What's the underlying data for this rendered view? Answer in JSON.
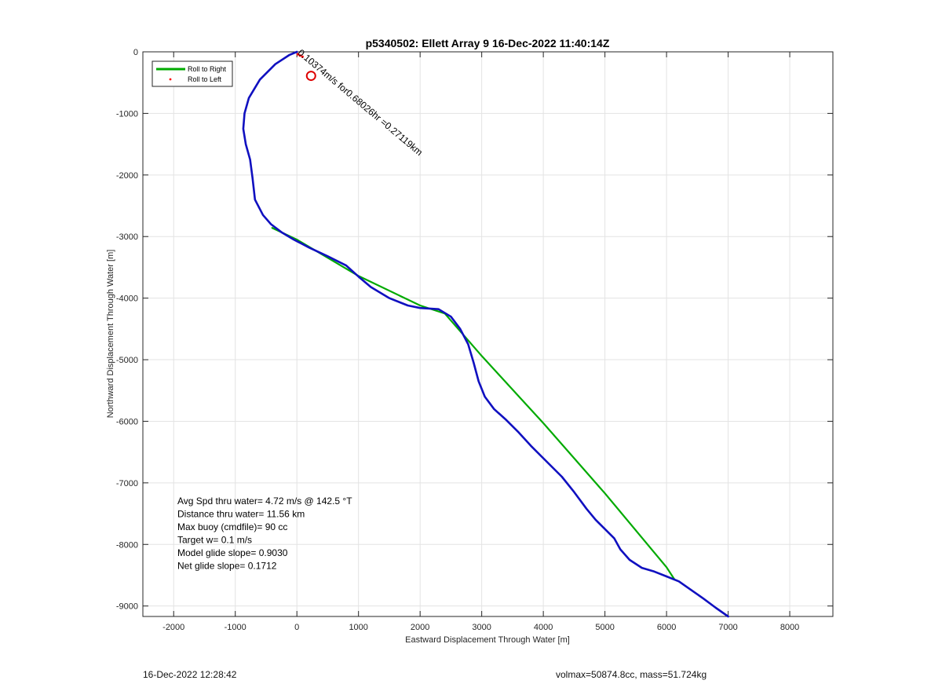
{
  "chart_data": {
    "type": "line",
    "title": "p5340502: Ellett Array 9 16-Dec-2022 11:40:14Z",
    "xlabel": "Eastward Displacement Through Water [m]",
    "ylabel": "Northward Displacement Through Water [m]",
    "xlim": [
      -2500,
      8700
    ],
    "ylim": [
      -9170,
      0
    ],
    "xticks": [
      -2000,
      -1000,
      0,
      1000,
      2000,
      3000,
      4000,
      5000,
      6000,
      7000,
      8000
    ],
    "yticks": [
      0,
      -1000,
      -2000,
      -3000,
      -4000,
      -5000,
      -6000,
      -7000,
      -8000,
      -9000
    ],
    "grid": true,
    "legend_position": "top-left",
    "series": [
      {
        "name": "Roll to Right",
        "style": "solid-line",
        "color": "#00aa00",
        "x": [
          -400,
          0,
          1000,
          2000,
          2400,
          3000,
          4000,
          5000,
          6000,
          6130
        ],
        "y": [
          -2860,
          -3050,
          -3640,
          -4120,
          -4250,
          -4940,
          -6030,
          -7170,
          -8370,
          -8570
        ]
      },
      {
        "name": "Roll to Left",
        "style": "dots",
        "color": "#ff0000",
        "x": [
          15,
          50,
          90
        ],
        "y": [
          -40,
          -60,
          -80
        ]
      },
      {
        "name": "",
        "style": "solid-line",
        "color": "#1010c0",
        "x": [
          0,
          -120,
          -350,
          -600,
          -780,
          -850,
          -870,
          -830,
          -760,
          -720,
          -680,
          -550,
          -420,
          -250,
          -50,
          200,
          500,
          800,
          1000,
          1200,
          1500,
          1800,
          2000,
          2300,
          2500,
          2650,
          2780,
          2870,
          2950,
          3050,
          3200,
          3400,
          3600,
          3800,
          4000,
          4300,
          4500,
          4700,
          4850,
          5000,
          5150,
          5250,
          5400,
          5600,
          5800,
          6000,
          6200,
          6400,
          6600,
          6800,
          7000
        ],
        "y": [
          0,
          -50,
          -200,
          -450,
          -750,
          -1000,
          -1250,
          -1500,
          -1750,
          -2050,
          -2400,
          -2650,
          -2800,
          -2930,
          -3050,
          -3180,
          -3320,
          -3470,
          -3650,
          -3820,
          -4000,
          -4120,
          -4160,
          -4180,
          -4300,
          -4500,
          -4750,
          -5050,
          -5350,
          -5600,
          -5800,
          -5980,
          -6180,
          -6400,
          -6600,
          -6900,
          -7150,
          -7420,
          -7600,
          -7750,
          -7900,
          -8080,
          -8250,
          -8380,
          -8440,
          -8520,
          -8600,
          -8740,
          -8880,
          -9030,
          -9170
        ]
      }
    ],
    "markers": [
      {
        "x": 230,
        "y": -390,
        "shape": "circle",
        "color": "#dd0000"
      }
    ],
    "annotations": [
      {
        "text": "0.10374m/s for0.68026hr =0.27119km",
        "x": 5,
        "y": -30,
        "angle_deg": 40
      }
    ],
    "stats_box": [
      "Avg Spd thru water=  4.72 m/s @ 142.5 °T",
      "Distance thru water= 11.56 km",
      "Max buoy (cmdfile)= 90 cc",
      "Target w= 0.1 m/s",
      "Model glide slope= 0.9030",
      "Net glide slope= 0.1712"
    ]
  },
  "footer": {
    "left": "16-Dec-2022 12:28:42",
    "right": "volmax=50874.8cc, mass=51.724kg"
  }
}
